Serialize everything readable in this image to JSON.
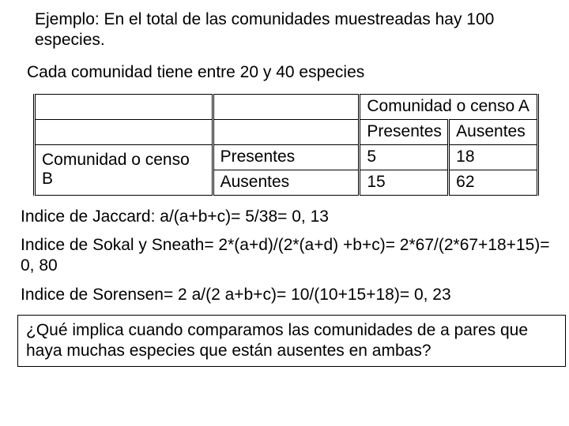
{
  "intro1": "Ejemplo: En el total de las comunidades muestreadas hay 100 especies.",
  "intro2": "Cada comunidad tiene entre 20 y 40 especies",
  "table": {
    "comA_header": "Comunidad o censo A",
    "presentes": "Presentes",
    "ausentes": "Ausentes",
    "comB_label": "Comunidad o censo B",
    "cells": {
      "pres_pres": "5",
      "pres_aus": "18",
      "aus_pres": "15",
      "aus_aus": "62"
    }
  },
  "jaccard": "Indice de Jaccard: a/(a+b+c)= 5/38= 0, 13",
  "sokal": "Indice de Sokal y Sneath= 2*(a+d)/(2*(a+d) +b+c)= 2*67/(2*67+18+15)= 0, 80",
  "sorensen": "Indice de Sorensen= 2 a/(2 a+b+c)= 10/(10+15+18)= 0, 23",
  "question": "¿Qué implica cuando comparamos las comunidades de a pares que haya muchas especies que están ausentes en ambas?"
}
